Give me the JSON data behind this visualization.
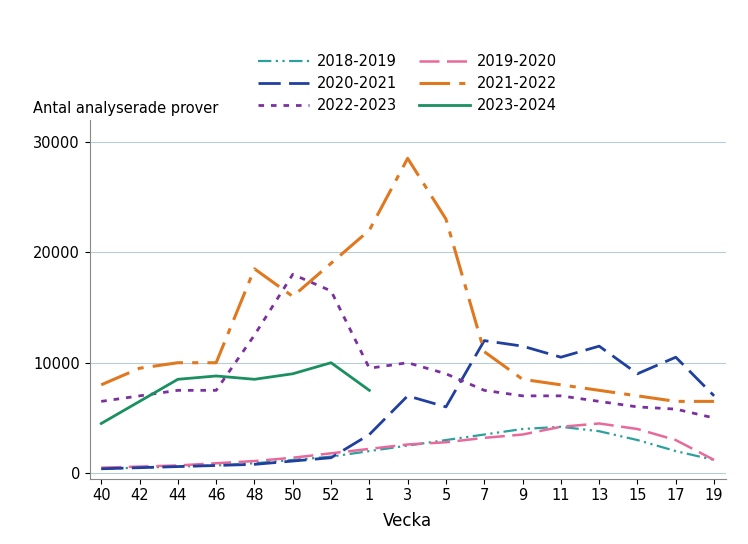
{
  "title": "",
  "xlabel": "Vecka",
  "ylabel": "Antal analyserade prover",
  "ylim": [
    -500,
    32000
  ],
  "yticks": [
    0,
    10000,
    20000,
    30000
  ],
  "xtick_labels": [
    "40",
    "42",
    "44",
    "46",
    "48",
    "50",
    "52",
    "1",
    "3",
    "5",
    "7",
    "9",
    "11",
    "13",
    "15",
    "17",
    "19"
  ],
  "series": [
    {
      "label": "2018-2019",
      "color": "#2ca09c",
      "linestyle_type": "dashdot2",
      "linewidth": 1.6,
      "data": [
        400,
        500,
        600,
        700,
        900,
        1200,
        1500,
        2000,
        2500,
        3000,
        3500,
        4000,
        4200,
        3800,
        3000,
        2000,
        1200
      ]
    },
    {
      "label": "2019-2020",
      "color": "#e9699a",
      "linestyle_type": "longdash",
      "linewidth": 1.8,
      "data": [
        500,
        600,
        700,
        900,
        1100,
        1400,
        1800,
        2200,
        2600,
        2800,
        3200,
        3500,
        4200,
        4500,
        4000,
        3000,
        1200
      ]
    },
    {
      "label": "2020-2021",
      "color": "#2040a0",
      "linestyle_type": "longdash",
      "linewidth": 2.0,
      "data": [
        400,
        500,
        600,
        700,
        800,
        1100,
        1400,
        3500,
        7000,
        6000,
        12000,
        11500,
        10500,
        11500,
        9000,
        10500,
        7000
      ]
    },
    {
      "label": "2021-2022",
      "color": "#e07820",
      "linestyle_type": "dashdot_long",
      "linewidth": 2.2,
      "data": [
        8000,
        9500,
        10000,
        10000,
        18500,
        16000,
        19000,
        22000,
        28500,
        23000,
        11000,
        8500,
        8000,
        7500,
        7000,
        6500,
        6500
      ]
    },
    {
      "label": "2022-2023",
      "color": "#7b30a0",
      "linestyle_type": "dotted",
      "linewidth": 2.0,
      "data": [
        6500,
        7000,
        7500,
        7500,
        12500,
        18000,
        16500,
        9500,
        10000,
        9000,
        7500,
        7000,
        7000,
        6500,
        6000,
        5800,
        5000
      ]
    },
    {
      "label": "2023-2024",
      "color": "#1a9060",
      "linestyle_type": "solid",
      "linewidth": 2.0,
      "data": [
        4500,
        6500,
        8500,
        8800,
        8500,
        9000,
        10000,
        7500,
        null,
        null,
        null,
        null,
        null,
        null,
        null,
        null,
        null
      ]
    }
  ],
  "legend_order": [
    0,
    2,
    4,
    1,
    3,
    5
  ],
  "background_color": "#ffffff",
  "grid_color": "#b8ccd8",
  "grid_alpha": 1.0
}
